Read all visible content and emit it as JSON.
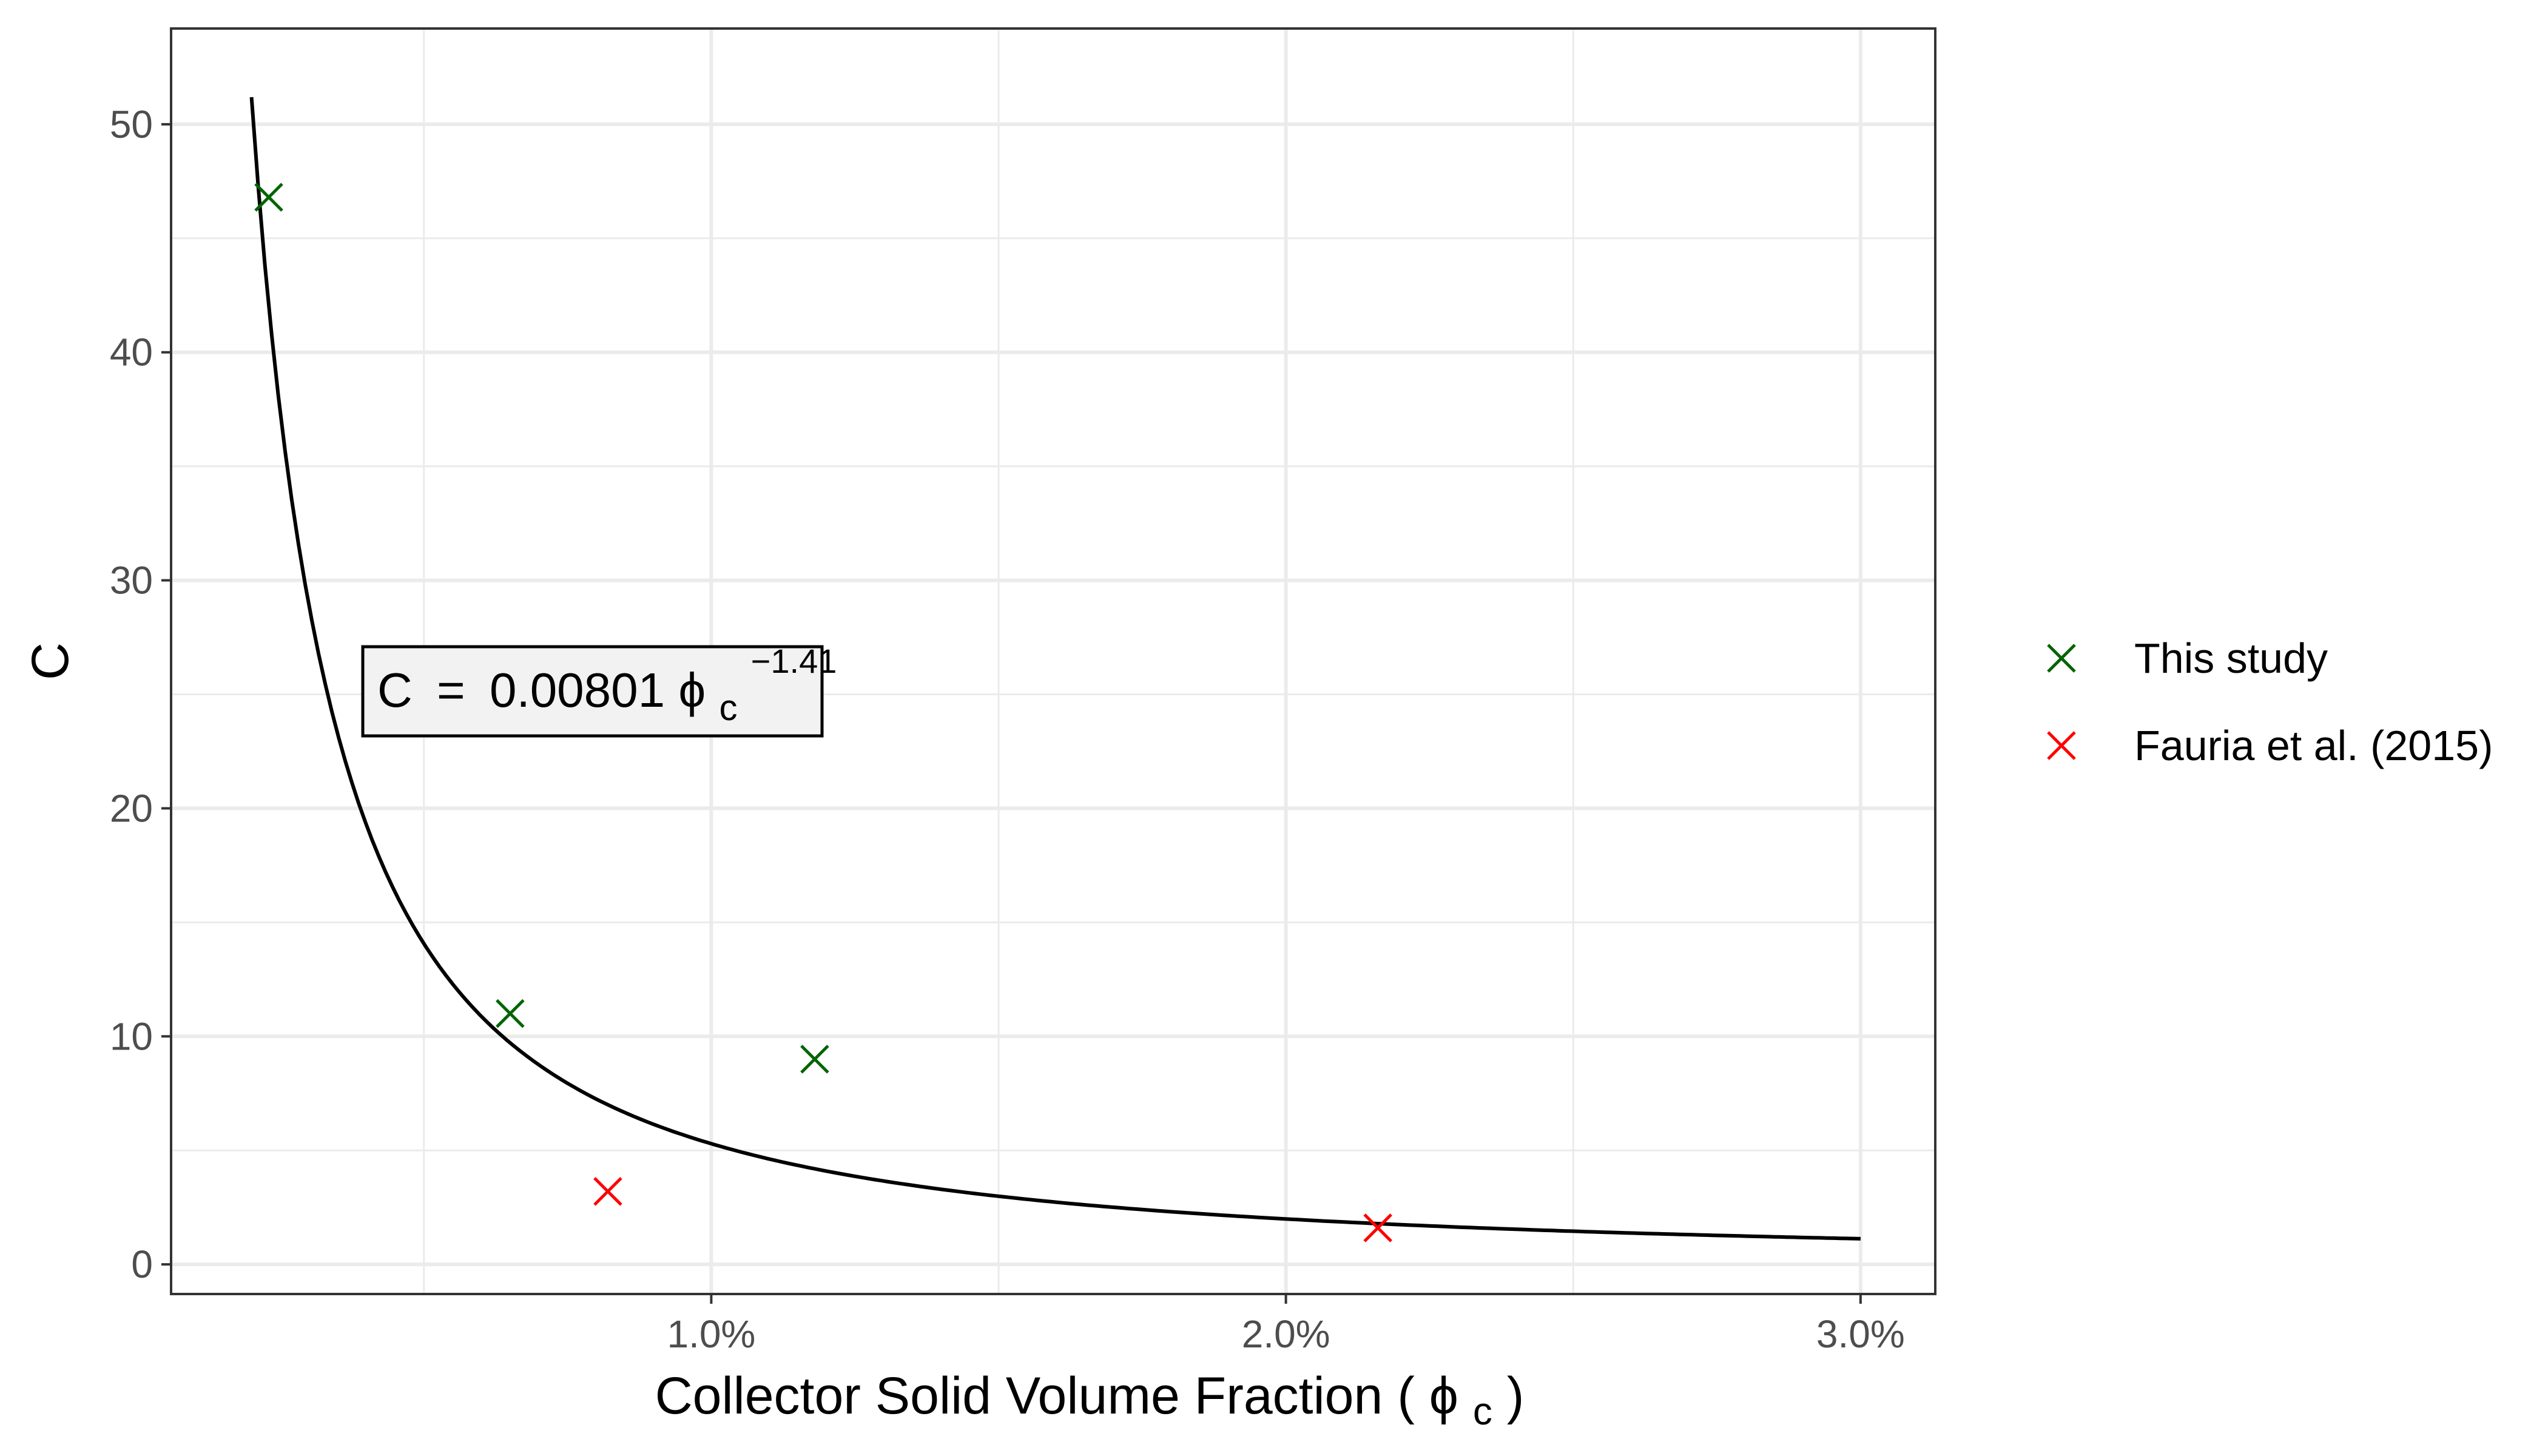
{
  "chart_data": {
    "type": "scatter",
    "xlabel": "Collector Solid Volume Fraction (",
    "xlabel_symbol": "ϕ",
    "xlabel_subscript": "c",
    "xlabel_close": " )",
    "ylabel": "C",
    "xlim": [
      0.0006,
      0.0313
    ],
    "ylim": [
      -1.3,
      54.2
    ],
    "x_ticks": [
      0.01,
      0.02,
      0.03
    ],
    "x_tick_labels": [
      "1.0%",
      "2.0%",
      "3.0%"
    ],
    "x_minor_ticks": [
      0.005,
      0.015,
      0.025
    ],
    "y_ticks": [
      0,
      10,
      20,
      30,
      40,
      50
    ],
    "y_tick_labels": [
      "0",
      "10",
      "20",
      "30",
      "40",
      "50"
    ],
    "y_minor_ticks": [
      5,
      15,
      25,
      35,
      45
    ],
    "grid": true,
    "legend_position": "right",
    "series": [
      {
        "name": "This study",
        "color": "#006400",
        "marker": "x",
        "points": [
          {
            "x": 0.0023,
            "y": 46.8
          },
          {
            "x": 0.0065,
            "y": 11.0
          },
          {
            "x": 0.0118,
            "y": 9.0
          }
        ]
      },
      {
        "name": "Fauria et al. (2015)",
        "color": "#ff0000",
        "marker": "x",
        "points": [
          {
            "x": 0.0082,
            "y": 3.2
          },
          {
            "x": 0.0216,
            "y": 1.6
          }
        ]
      }
    ],
    "fit": {
      "color": "#000000",
      "coefficient": 0.00801,
      "exponent": -1.41,
      "x_range": [
        0.002,
        0.03
      ]
    },
    "annotation": {
      "prefix": "C",
      "equals": "=",
      "value": "0.00801",
      "symbol": "ϕ",
      "subscript": "c",
      "superscript": "−1.41"
    }
  }
}
